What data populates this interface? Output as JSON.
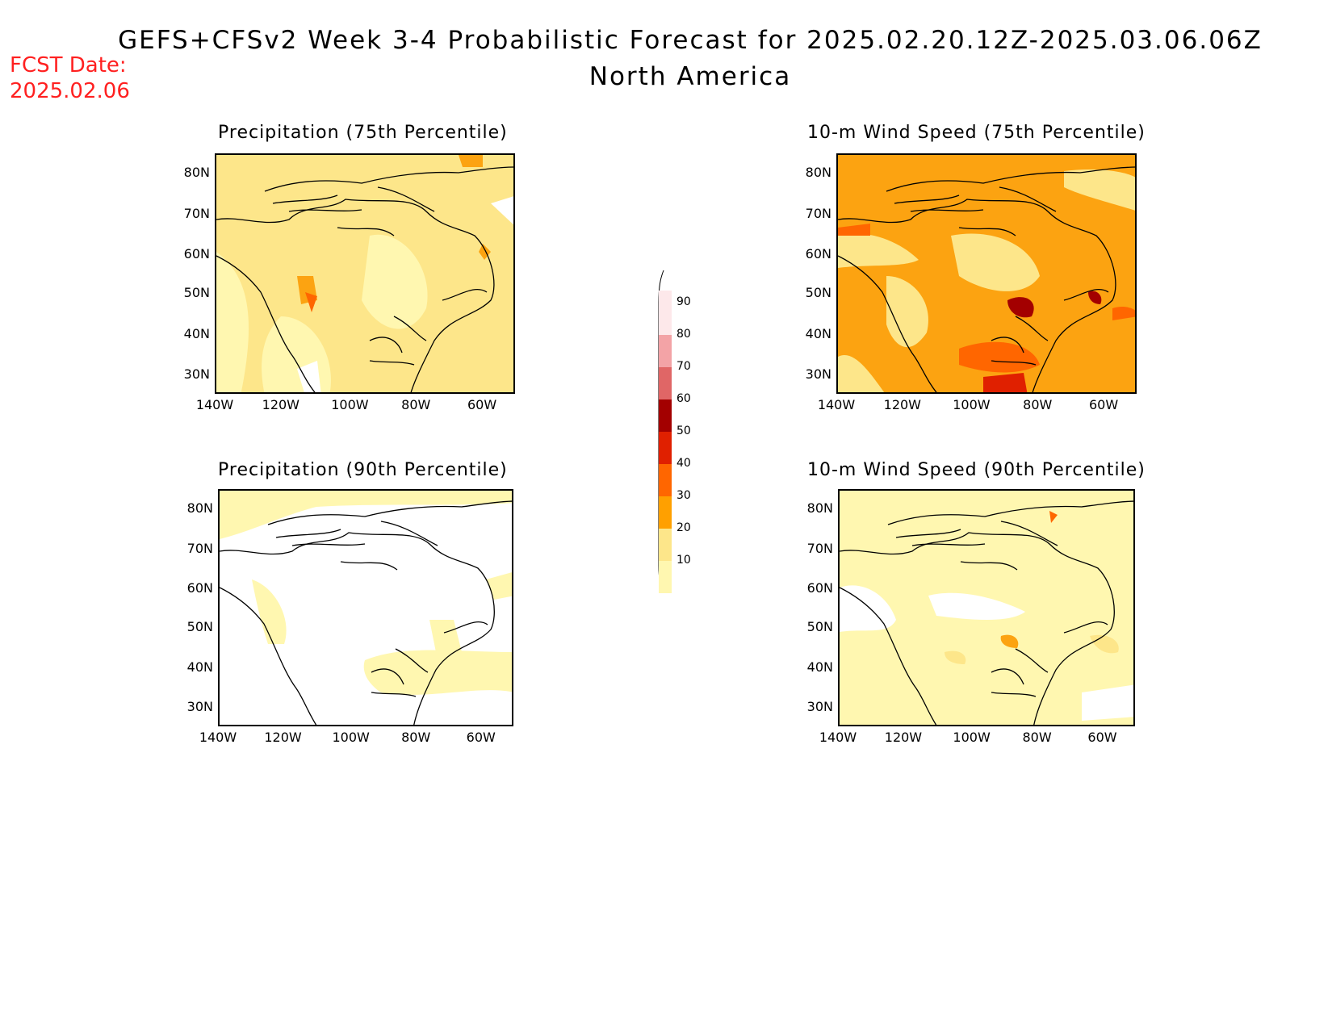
{
  "header": {
    "title": "GEFS+CFSv2 Week 3-4 Probabilistic Forecast for 2025.02.20.12Z-2025.03.06.06Z",
    "subtitle": "North America",
    "fcst_label": "FCST Date:",
    "fcst_date": "2025.02.06"
  },
  "panels": [
    {
      "id": "precip75",
      "title": "Precipitation (75th Percentile)",
      "fill": "#fde68a",
      "level": "20-30"
    },
    {
      "id": "wind75",
      "title": "10-m Wind Speed (75th Percentile)",
      "fill": "#fca311",
      "level": "30-40"
    },
    {
      "id": "precip90",
      "title": "Precipitation (90th Percentile)",
      "fill": "#ffffff",
      "level": "0-10"
    },
    {
      "id": "wind90",
      "title": "10-m Wind Speed (90th Percentile)",
      "fill": "#fff5b8",
      "level": "10-20"
    }
  ],
  "axes": {
    "lat_labels": [
      "80N",
      "70N",
      "60N",
      "50N",
      "40N",
      "30N"
    ],
    "lon_labels": [
      "140W",
      "120W",
      "100W",
      "80W",
      "60W"
    ]
  },
  "colorbar": {
    "labels": [
      "90",
      "80",
      "70",
      "60",
      "50",
      "40",
      "30",
      "20",
      "10"
    ],
    "colors": [
      "#fde8ea",
      "#f3a3a6",
      "#e06666",
      "#a30000",
      "#e02000",
      "#ff6600",
      "#ffa000",
      "#fde68a",
      "#fff7b0"
    ]
  }
}
